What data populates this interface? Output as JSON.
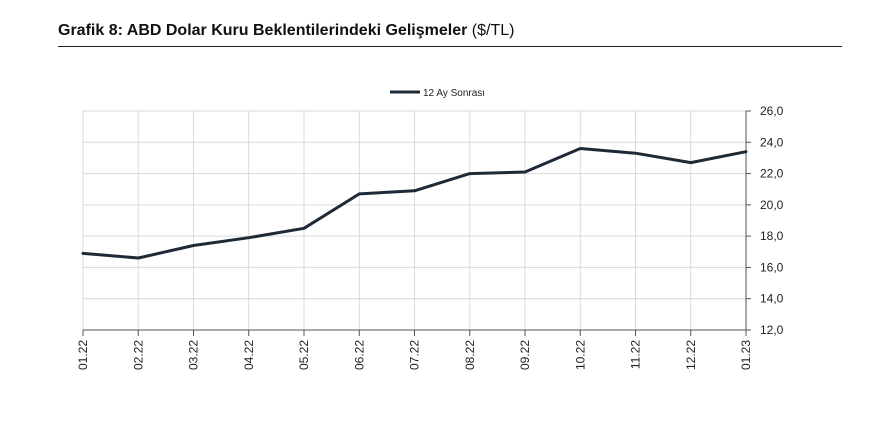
{
  "header": {
    "title": "Grafik 8: ABD Dolar Kuru Beklentilerindeki Gelişmeler",
    "unit": "($/TL)"
  },
  "chart_data": {
    "type": "line",
    "x": [
      "01.22",
      "02.22",
      "03.22",
      "04.22",
      "05.22",
      "06.22",
      "07.22",
      "08.22",
      "09.22",
      "10.22",
      "11.22",
      "12.22",
      "01.23"
    ],
    "series": [
      {
        "name": "12 Ay Sonrası",
        "values": [
          16.9,
          16.6,
          17.4,
          17.9,
          18.5,
          20.7,
          20.9,
          22.0,
          22.1,
          23.6,
          23.3,
          22.7,
          23.4
        ]
      }
    ],
    "ylim": [
      12.0,
      26.0
    ],
    "yticks": [
      "26,0",
      "24,0",
      "22,0",
      "20,0",
      "18,0",
      "16,0",
      "14,0",
      "12,0"
    ],
    "ytick_values": [
      26,
      24,
      22,
      20,
      18,
      16,
      14,
      12
    ],
    "grid": true,
    "legend": "top-center",
    "y_axis_side": "right",
    "colors": {
      "line": "#1f2a38",
      "grid": "#d9d9d9",
      "axis": "#555555"
    }
  }
}
